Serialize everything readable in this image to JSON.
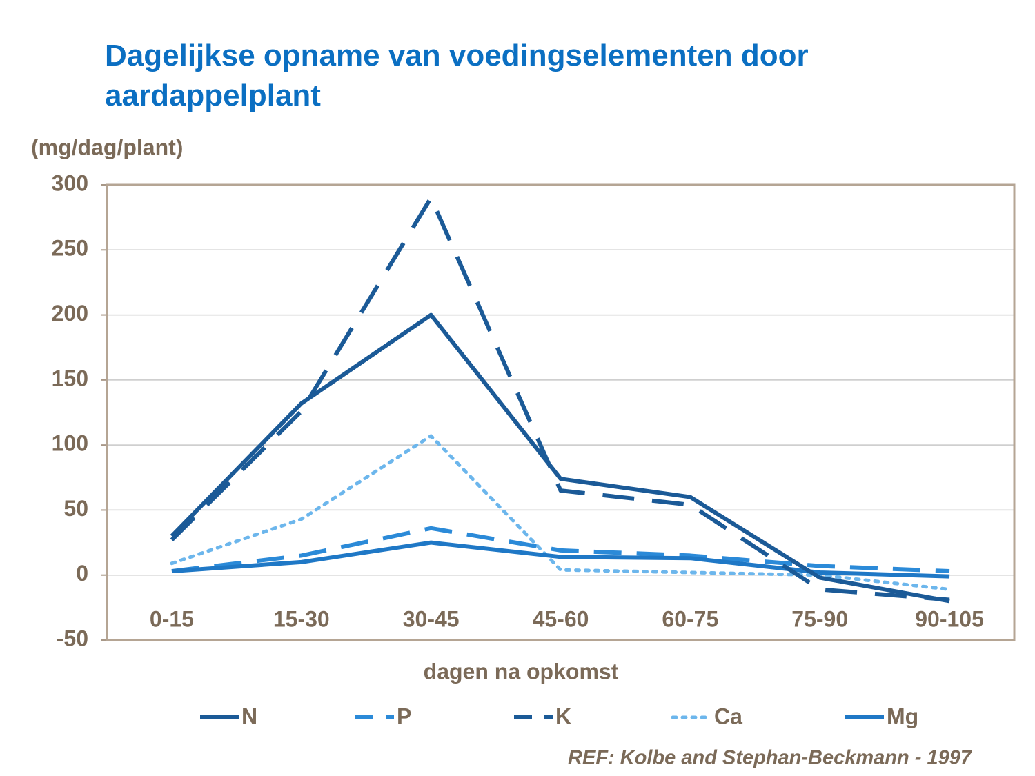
{
  "chart_data": {
    "type": "line",
    "title": "Dagelijkse opname van voedingselementen door aardappelplant",
    "y_label": "(mg/dag/plant)",
    "x_label": "dagen na opkomst",
    "source": "REF: Kolbe and Stephan-Beckmann  - 1997",
    "categories": [
      "0-15",
      "15-30",
      "30-45",
      "45-60",
      "60-75",
      "75-90",
      "90-105"
    ],
    "series": [
      {
        "name": "N",
        "color": "#1b5a97",
        "dash": "solid",
        "values": [
          30,
          132,
          200,
          74,
          60,
          -2,
          -20
        ]
      },
      {
        "name": "P",
        "color": "#2b8ad8",
        "dash": "dash",
        "values": [
          3,
          15,
          36,
          19,
          15,
          7,
          3
        ]
      },
      {
        "name": "K",
        "color": "#1b5a97",
        "dash": "longdash",
        "values": [
          27,
          126,
          290,
          65,
          54,
          -11,
          -19
        ]
      },
      {
        "name": "Ca",
        "color": "#6cb6ec",
        "dash": "dot",
        "values": [
          9,
          43,
          107,
          4,
          2,
          0,
          -11
        ]
      },
      {
        "name": "Mg",
        "color": "#1f78c6",
        "dash": "solid",
        "values": [
          3,
          10,
          25,
          14,
          13,
          2,
          -1
        ]
      }
    ],
    "ylim": [
      -50,
      300
    ],
    "yticks": [
      -50,
      0,
      50,
      100,
      150,
      200,
      250,
      300
    ],
    "grid": true
  }
}
